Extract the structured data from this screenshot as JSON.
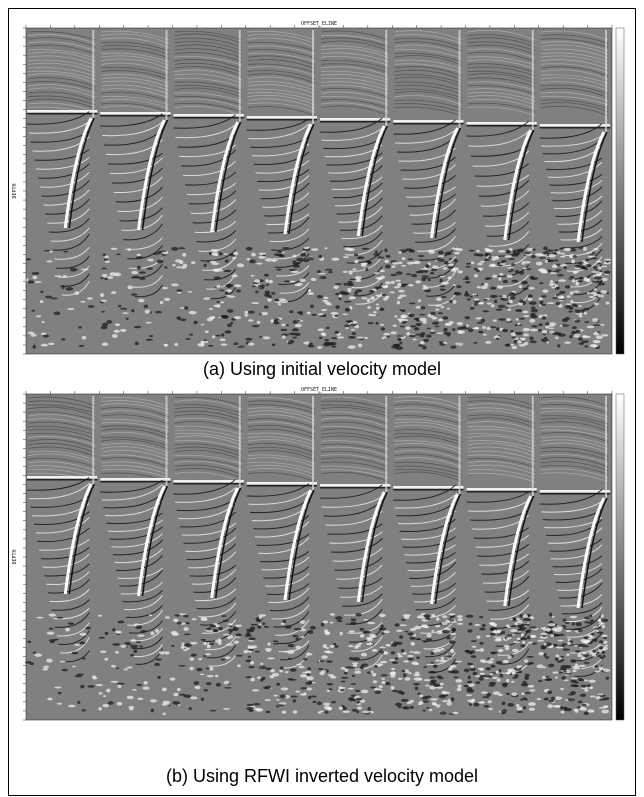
{
  "figure": {
    "panels": [
      {
        "caption": "(a) Using initial velocity model",
        "top_axis_title": "OFFSET_ELINE",
        "left_axis_title": "DEPTH"
      },
      {
        "caption": "(b) Using RFWI inverted velocity model",
        "top_axis_title": "OFFSET_ELINE",
        "left_axis_title": "DEPTH"
      }
    ],
    "colors": {
      "background": "#808080",
      "frame": "#000000",
      "colorbar_top": "#ffffff",
      "colorbar_bottom": "#000000"
    }
  }
}
